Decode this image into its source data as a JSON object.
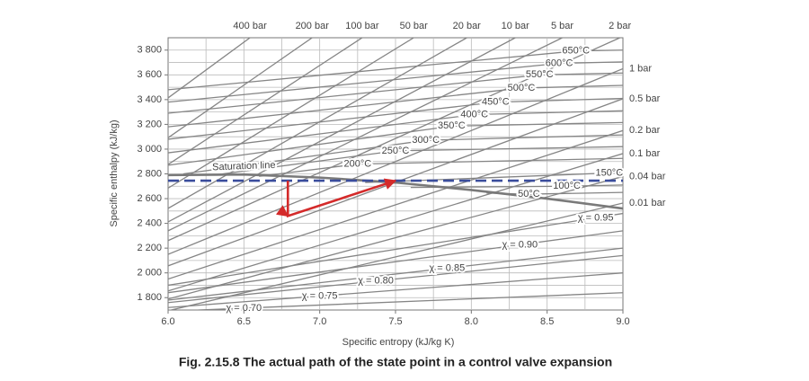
{
  "chart_data": {
    "type": "mollier",
    "title": "Fig. 2.15.8 The actual path of the state point in a control valve expansion",
    "x_label": "Specific entropy (kJ/kg K)",
    "y_label": "Specific enthalpy (kJ/kg)",
    "xlim": [
      6.0,
      9.0
    ],
    "ylim": [
      1700,
      3900
    ],
    "xticks": [
      {
        "value": 6.0,
        "label": "6.0"
      },
      6.5,
      {
        "value": 7.0,
        "label": "7.0"
      },
      7.5,
      {
        "value": 8.0,
        "label": "8.0"
      },
      8.5,
      {
        "value": 9.0,
        "label": "9.0"
      }
    ],
    "yticks": [
      {
        "value": 1800,
        "label": "1 800"
      },
      {
        "value": 2000,
        "label": "2 000"
      },
      {
        "value": 2200,
        "label": "2 200"
      },
      {
        "value": 2400,
        "label": "2 400"
      },
      {
        "value": 2600,
        "label": "2 600"
      },
      {
        "value": 2800,
        "label": "2 800"
      },
      {
        "value": 3000,
        "label": "3 000"
      },
      {
        "value": 3200,
        "label": "3 200"
      },
      {
        "value": 3400,
        "label": "3 400"
      },
      {
        "value": 3600,
        "label": "3 600"
      },
      {
        "value": 3800,
        "label": "3 800"
      }
    ],
    "x_gridlines": [
      6.25,
      6.5,
      6.75,
      7.0,
      7.25,
      7.5,
      7.75,
      8.0,
      8.25,
      8.5,
      8.75
    ],
    "y_gridlines": [
      1800,
      1900,
      2000,
      2100,
      2200,
      2300,
      2400,
      2500,
      2600,
      2700,
      2800,
      2900,
      3000,
      3100,
      3200,
      3300,
      3400,
      3500,
      3600,
      3700,
      3800
    ],
    "grid": true,
    "line_color": "#858585",
    "isobars": [
      {
        "name": "400 bar",
        "x": [
          6.0,
          6.54
        ],
        "values": [
          3414,
          3900
        ]
      },
      {
        "name": "200 bar",
        "x": [
          6.0,
          6.95
        ],
        "values": [
          3092,
          3900
        ]
      },
      {
        "name": "100 bar",
        "x": [
          6.0,
          7.28
        ],
        "values": [
          2876,
          3900
        ]
      },
      {
        "name": "50 bar",
        "x": [
          6.0,
          7.62
        ],
        "values": [
          2685,
          3900
        ]
      },
      {
        "name": "20 bar",
        "x": [
          6.0,
          7.97
        ],
        "values": [
          2521,
          3900
        ]
      },
      {
        "name": "10 bar",
        "x": [
          6.0,
          8.29
        ],
        "values": [
          2412,
          3900
        ]
      },
      {
        "name": "5 bar",
        "x": [
          6.0,
          8.6
        ],
        "values": [
          2340,
          3900
        ]
      },
      {
        "name": "2 bar",
        "x": [
          6.0,
          8.98
        ],
        "values": [
          2261,
          3900
        ]
      },
      {
        "name": "1 bar",
        "x": [
          6.0,
          9.0
        ],
        "values": [
          2150,
          3650
        ]
      },
      {
        "name": "0.5 bar",
        "x": [
          6.0,
          9.0
        ],
        "values": [
          2057,
          3407
        ]
      },
      {
        "name": "0.2 bar",
        "x": [
          6.0,
          9.0
        ],
        "values": [
          1950,
          3150
        ]
      },
      {
        "name": "0.1 bar",
        "x": [
          6.0,
          9.0
        ],
        "values": [
          1854,
          2964
        ]
      },
      {
        "name": "0.04 bar",
        "x": [
          6.0,
          9.0
        ],
        "values": [
          1789,
          2779
        ]
      },
      {
        "name": "0.01 bar",
        "x": [
          6.0,
          9.0
        ],
        "values": [
          1694,
          2564
        ]
      }
    ],
    "isotherms": [
      {
        "name": "650°C",
        "x": [
          6.0,
          8.69,
          9.0
        ],
        "values": [
          3480,
          3793,
          3800
        ]
      },
      {
        "name": "600°C",
        "x": [
          6.0,
          8.58,
          9.0
        ],
        "values": [
          3380,
          3693,
          3705
        ]
      },
      {
        "name": "550°C",
        "x": [
          6.0,
          8.45,
          9.0
        ],
        "values": [
          3290,
          3600,
          3615
        ]
      },
      {
        "name": "500°C",
        "x": [
          6.0,
          8.33,
          9.0
        ],
        "values": [
          3180,
          3493,
          3515
        ]
      },
      {
        "name": "450°C",
        "x": [
          6.0,
          8.16,
          9.0
        ],
        "values": [
          3080,
          3379,
          3410
        ]
      },
      {
        "name": "400°C",
        "x": [
          6.0,
          8.02,
          9.0
        ],
        "values": [
          2970,
          3279,
          3310
        ]
      },
      {
        "name": "350°C",
        "x": [
          6.0,
          7.87,
          9.0
        ],
        "values": [
          2870,
          3186,
          3215
        ]
      },
      {
        "name": "300°C",
        "x": [
          6.1,
          7.7,
          9.0
        ],
        "values": [
          2800,
          3071,
          3115
        ]
      },
      {
        "name": "250°C",
        "x": [
          6.3,
          7.5,
          9.0
        ],
        "values": [
          2790,
          2986,
          3020
        ]
      },
      {
        "name": "200°C",
        "x": [
          6.6,
          7.25,
          9.0
        ],
        "values": [
          2780,
          2879,
          2925
        ]
      },
      {
        "name": "150°C",
        "x": [
          7.3,
          8.91,
          9.0
        ],
        "values": [
          2730,
          2807,
          2812
        ]
      },
      {
        "name": "100°C",
        "x": [
          7.6,
          8.63,
          9.0
        ],
        "values": [
          2690,
          2700,
          2710
        ]
      },
      {
        "name": "50°C",
        "x": [
          8.1,
          8.38,
          9.0
        ],
        "values": [
          2645,
          2636,
          2650
        ]
      }
    ],
    "quality_lines": [
      {
        "name": "χ = 0.70",
        "x": [
          6.2,
          6.5,
          9.0
        ],
        "values": [
          1700,
          1715,
          1840
        ]
      },
      {
        "name": "χ = 0.75",
        "x": [
          6.0,
          7.0,
          9.0
        ],
        "values": [
          1720,
          1813,
          2000
        ]
      },
      {
        "name": "χ = 0.80",
        "x": [
          6.0,
          7.37,
          9.0
        ],
        "values": [
          1760,
          1934,
          2140
        ]
      },
      {
        "name": "χ = 0.85",
        "x": [
          6.0,
          7.84,
          9.0
        ],
        "values": [
          1780,
          2038,
          2200
        ]
      },
      {
        "name": "χ = 0.90",
        "x": [
          6.0,
          8.32,
          9.0
        ],
        "values": [
          1840,
          2227,
          2340
        ]
      },
      {
        "name": "χ = 0.95",
        "x": [
          6.0,
          8.82,
          9.0
        ],
        "values": [
          1900,
          2445,
          2480
        ]
      }
    ],
    "saturation_line": {
      "name": "Saturation line",
      "color": "#7a7a7a",
      "x": [
        6.0,
        6.5,
        7.0,
        7.5,
        8.0,
        8.5,
        9.0
      ],
      "values": [
        2790,
        2795,
        2770,
        2730,
        2670,
        2600,
        2520
      ]
    },
    "reference_enthalpy": {
      "color": "#3a4d9c",
      "value": 2745
    },
    "process_path": {
      "color": "#d42a2a",
      "x": [
        6.79,
        6.79,
        7.5
      ],
      "values": [
        2745,
        2460,
        2745
      ]
    }
  }
}
